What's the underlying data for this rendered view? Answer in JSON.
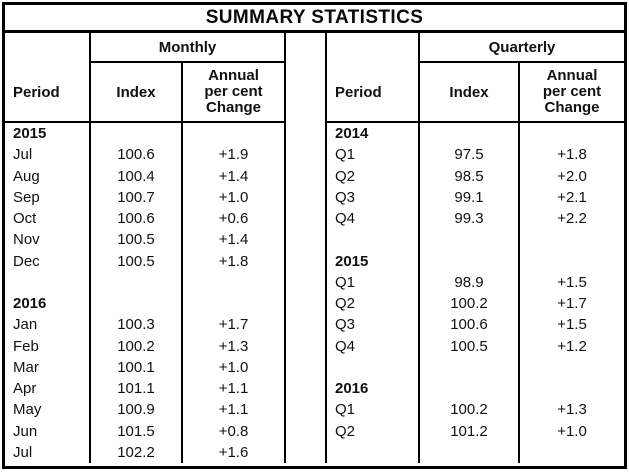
{
  "title": "SUMMARY STATISTICS",
  "colors": {
    "border": "#000000",
    "background": "#ffffff",
    "text": "#111111"
  },
  "monthly": {
    "group_label": "Monthly",
    "period_header": "Period",
    "index_header": "Index",
    "change_header": "Annual\nper cent\nChange"
  },
  "quarterly": {
    "group_label": "Quarterly",
    "period_header": "Period",
    "index_header": "Index",
    "change_header": "Annual\nper cent\nChange"
  },
  "rows": [
    {
      "mp": "2015",
      "mi": "",
      "mc": "",
      "qp": "2014",
      "qi": "",
      "qc": ""
    },
    {
      "mp": "Jul",
      "mi": "100.6",
      "mc": "+1.9",
      "qp": "Q1",
      "qi": "97.5",
      "qc": "+1.8"
    },
    {
      "mp": "Aug",
      "mi": "100.4",
      "mc": "+1.4",
      "qp": "Q2",
      "qi": "98.5",
      "qc": "+2.0"
    },
    {
      "mp": "Sep",
      "mi": "100.7",
      "mc": "+1.0",
      "qp": "Q3",
      "qi": "99.1",
      "qc": "+2.1"
    },
    {
      "mp": "Oct",
      "mi": "100.6",
      "mc": "+0.6",
      "qp": "Q4",
      "qi": "99.3",
      "qc": "+2.2"
    },
    {
      "mp": "Nov",
      "mi": "100.5",
      "mc": "+1.4",
      "qp": "",
      "qi": "",
      "qc": ""
    },
    {
      "mp": "Dec",
      "mi": "100.5",
      "mc": "+1.8",
      "qp": "2015",
      "qi": "",
      "qc": ""
    },
    {
      "mp": "",
      "mi": "",
      "mc": "",
      "qp": "Q1",
      "qi": "98.9",
      "qc": "+1.5"
    },
    {
      "mp": "2016",
      "mi": "",
      "mc": "",
      "qp": "Q2",
      "qi": "100.2",
      "qc": "+1.7"
    },
    {
      "mp": "Jan",
      "mi": "100.3",
      "mc": "+1.7",
      "qp": "Q3",
      "qi": "100.6",
      "qc": "+1.5"
    },
    {
      "mp": "Feb",
      "mi": "100.2",
      "mc": "+1.3",
      "qp": "Q4",
      "qi": "100.5",
      "qc": "+1.2"
    },
    {
      "mp": "Mar",
      "mi": "100.1",
      "mc": "+1.0",
      "qp": "",
      "qi": "",
      "qc": ""
    },
    {
      "mp": "Apr",
      "mi": "101.1",
      "mc": "+1.1",
      "qp": "2016",
      "qi": "",
      "qc": ""
    },
    {
      "mp": "May",
      "mi": "100.9",
      "mc": "+1.1",
      "qp": "Q1",
      "qi": "100.2",
      "qc": "+1.3"
    },
    {
      "mp": "Jun",
      "mi": "101.5",
      "mc": "+0.8",
      "qp": "Q2",
      "qi": "101.2",
      "qc": "+1.0"
    },
    {
      "mp": "Jul",
      "mi": "102.2",
      "mc": "+1.6",
      "qp": "",
      "qi": "",
      "qc": ""
    }
  ]
}
